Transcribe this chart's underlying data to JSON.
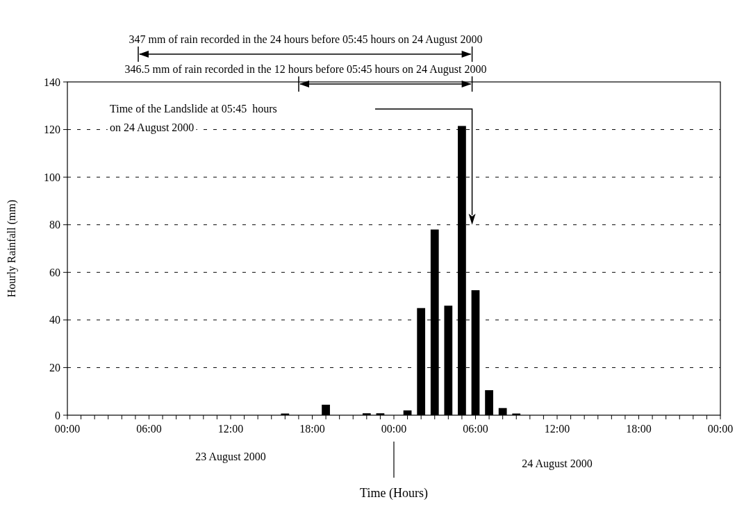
{
  "chart_data": {
    "type": "bar",
    "xlabel": "Time (Hours)",
    "ylabel": "Hourly Rainfall (mm)",
    "x": [
      "2000-08-23T16:00",
      "2000-08-23T19:00",
      "2000-08-23T22:00",
      "2000-08-23T23:00",
      "2000-08-24T01:00",
      "2000-08-24T02:00",
      "2000-08-24T03:00",
      "2000-08-24T04:00",
      "2000-08-24T05:00",
      "2000-08-24T06:00",
      "2000-08-24T07:00",
      "2000-08-24T08:00",
      "2000-08-24T09:00"
    ],
    "values": [
      0.7,
      4.4,
      0.8,
      0.8,
      2,
      45,
      78,
      46,
      121.5,
      52.5,
      10.5,
      3,
      0.7
    ],
    "color": "#000000",
    "xlim": [
      "2000-08-23T00:00",
      "2000-08-25T00:00"
    ],
    "xticks": [
      {
        "value": "2000-08-23T00:00",
        "label": "00:00"
      },
      {
        "value": "2000-08-23T01:00",
        "label": null
      },
      {
        "value": "2000-08-23T02:00",
        "label": null
      },
      {
        "value": "2000-08-23T03:00",
        "label": null
      },
      {
        "value": "2000-08-23T04:00",
        "label": null
      },
      {
        "value": "2000-08-23T05:00",
        "label": null
      },
      {
        "value": "2000-08-23T06:00",
        "label": "06:00"
      },
      {
        "value": "2000-08-23T07:00",
        "label": null
      },
      {
        "value": "2000-08-23T08:00",
        "label": null
      },
      {
        "value": "2000-08-23T09:00",
        "label": null
      },
      {
        "value": "2000-08-23T10:00",
        "label": null
      },
      {
        "value": "2000-08-23T11:00",
        "label": null
      },
      {
        "value": "2000-08-23T12:00",
        "label": "12:00"
      },
      {
        "value": "2000-08-23T13:00",
        "label": null
      },
      {
        "value": "2000-08-23T14:00",
        "label": null
      },
      {
        "value": "2000-08-23T15:00",
        "label": null
      },
      {
        "value": "2000-08-23T16:00",
        "label": null
      },
      {
        "value": "2000-08-23T17:00",
        "label": null
      },
      {
        "value": "2000-08-23T18:00",
        "label": "18:00"
      },
      {
        "value": "2000-08-23T19:00",
        "label": null
      },
      {
        "value": "2000-08-23T20:00",
        "label": null
      },
      {
        "value": "2000-08-23T21:00",
        "label": null
      },
      {
        "value": "2000-08-23T22:00",
        "label": null
      },
      {
        "value": "2000-08-23T23:00",
        "label": null
      },
      {
        "value": "2000-08-24T00:00",
        "label": "00:00"
      },
      {
        "value": "2000-08-24T01:00",
        "label": null
      },
      {
        "value": "2000-08-24T02:00",
        "label": null
      },
      {
        "value": "2000-08-24T03:00",
        "label": null
      },
      {
        "value": "2000-08-24T04:00",
        "label": null
      },
      {
        "value": "2000-08-24T05:00",
        "label": null
      },
      {
        "value": "2000-08-24T06:00",
        "label": "06:00"
      },
      {
        "value": "2000-08-24T07:00",
        "label": null
      },
      {
        "value": "2000-08-24T08:00",
        "label": null
      },
      {
        "value": "2000-08-24T09:00",
        "label": null
      },
      {
        "value": "2000-08-24T10:00",
        "label": null
      },
      {
        "value": "2000-08-24T11:00",
        "label": null
      },
      {
        "value": "2000-08-24T12:00",
        "label": "12:00"
      },
      {
        "value": "2000-08-24T13:00",
        "label": null
      },
      {
        "value": "2000-08-24T14:00",
        "label": null
      },
      {
        "value": "2000-08-24T15:00",
        "label": null
      },
      {
        "value": "2000-08-24T16:00",
        "label": null
      },
      {
        "value": "2000-08-24T17:00",
        "label": null
      },
      {
        "value": "2000-08-24T18:00",
        "label": "18:00"
      },
      {
        "value": "2000-08-24T19:00",
        "label": null
      },
      {
        "value": "2000-08-24T20:00",
        "label": null
      },
      {
        "value": "2000-08-24T21:00",
        "label": null
      },
      {
        "value": "2000-08-24T22:00",
        "label": null
      },
      {
        "value": "2000-08-24T23:00",
        "label": null
      },
      {
        "value": "2000-08-25T00:00",
        "label": "00:00"
      }
    ],
    "ylim": [
      0,
      140
    ],
    "yticks": [
      0,
      20,
      40,
      60,
      80,
      100,
      120,
      140
    ],
    "grid": "y",
    "ref_lines": [
      {
        "axis": "x",
        "value": "2000-08-24T05:45",
        "label": "Time of the Landslide at 05:45  hours\non 24 August 2000"
      }
    ],
    "annotations": [
      "347 mm of rain recorded in the 24 hours before 05:45 hours on 24 August 2000",
      "346.5 mm of rain recorded in the 12 hours before 05:45 hours on 24 August 2000",
      "23 August 2000",
      "24 August 2000"
    ]
  }
}
